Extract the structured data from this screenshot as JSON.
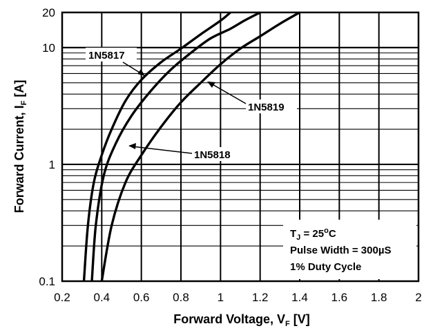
{
  "chart_data": {
    "type": "line",
    "xlabel": {
      "main": "Forward Voltage, V",
      "sub": "F",
      "unit": " [V]"
    },
    "ylabel": {
      "main": "Forward Current, I",
      "sub": "F",
      "unit": " [A]"
    },
    "xlim": [
      0.2,
      2.0
    ],
    "ylim": [
      0.1,
      20
    ],
    "yscale": "log",
    "grid": true,
    "x_ticks": [
      "0.2",
      "0.4",
      "0.6",
      "0.8",
      "1",
      "1.2",
      "1.4",
      "1.6",
      "1.8",
      "2"
    ],
    "y_ticks": [
      "0.1",
      "1",
      "10",
      "20"
    ],
    "series": [
      {
        "name": "1N5817",
        "points": [
          [
            0.31,
            0.1
          ],
          [
            0.33,
            0.3
          ],
          [
            0.36,
            0.7
          ],
          [
            0.4,
            1.2
          ],
          [
            0.45,
            2.0
          ],
          [
            0.52,
            3.5
          ],
          [
            0.6,
            5.3
          ],
          [
            0.7,
            7.5
          ],
          [
            0.8,
            9.8
          ],
          [
            0.9,
            13.0
          ],
          [
            1.0,
            17.0
          ],
          [
            1.05,
            20.0
          ]
        ]
      },
      {
        "name": "1N5818",
        "points": [
          [
            0.35,
            0.1
          ],
          [
            0.37,
            0.3
          ],
          [
            0.41,
            0.8
          ],
          [
            0.47,
            1.5
          ],
          [
            0.55,
            2.6
          ],
          [
            0.65,
            4.3
          ],
          [
            0.75,
            6.5
          ],
          [
            0.85,
            9.0
          ],
          [
            0.95,
            12.0
          ],
          [
            1.05,
            14.5
          ],
          [
            1.12,
            17.0
          ],
          [
            1.2,
            20.0
          ]
        ]
      },
      {
        "name": "1N5819",
        "points": [
          [
            0.4,
            0.1
          ],
          [
            0.45,
            0.3
          ],
          [
            0.52,
            0.7
          ],
          [
            0.6,
            1.2
          ],
          [
            0.7,
            2.1
          ],
          [
            0.8,
            3.4
          ],
          [
            0.9,
            5.0
          ],
          [
            1.0,
            7.2
          ],
          [
            1.1,
            9.8
          ],
          [
            1.2,
            12.5
          ],
          [
            1.3,
            16.0
          ],
          [
            1.4,
            20.0
          ]
        ]
      }
    ],
    "annotations": {
      "tj": {
        "main": "T",
        "sub": "J",
        "rest": " = 25",
        "sup": "o",
        "unit": "C"
      },
      "pulse_width": "Pulse Width = 300µS",
      "duty_cycle": "1% Duty Cycle"
    }
  }
}
